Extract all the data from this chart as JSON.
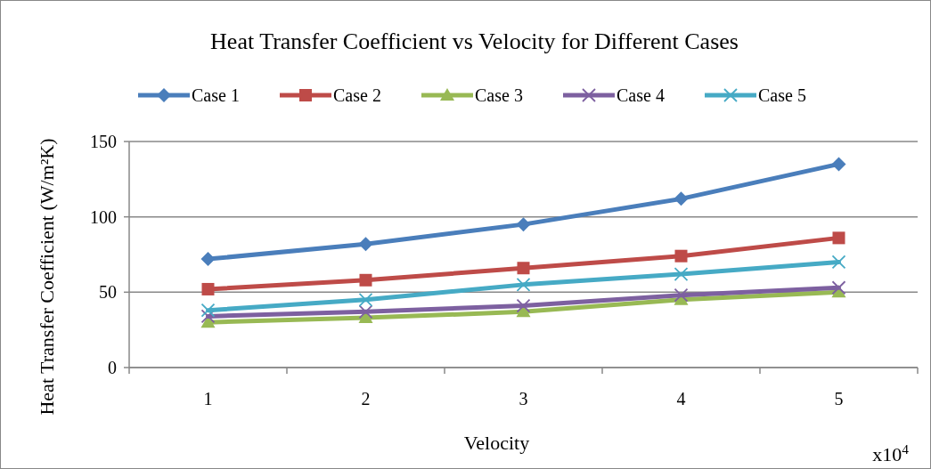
{
  "chart_data": {
    "type": "line",
    "title": "Heat Transfer Coefficient vs Velocity for Different Cases",
    "xlabel": "Velocity",
    "ylabel": "Heat Transfer Coefficient (W/m²K)",
    "annotations": [
      "x10$^{4}$"
    ],
    "categories": [
      "1",
      "2",
      "3",
      "4",
      "5"
    ],
    "series": [
      {
        "name": "Case 1",
        "color": "#4a7ebb",
        "marker": "diamond",
        "values": [
          72,
          82,
          95,
          112,
          135
        ]
      },
      {
        "name": "Case 2",
        "color": "#be4b48",
        "marker": "square",
        "values": [
          52,
          58,
          66,
          74,
          86
        ]
      },
      {
        "name": "Case 3",
        "color": "#98b954",
        "marker": "triangle",
        "values": [
          30,
          33,
          37,
          45,
          50
        ]
      },
      {
        "name": "Case 4",
        "color": "#7d60a0",
        "marker": "cross",
        "values": [
          34,
          37,
          41,
          48,
          53
        ]
      },
      {
        "name": "Case 5",
        "color": "#46aac5",
        "marker": "cross",
        "values": [
          38,
          45,
          55,
          62,
          70
        ]
      }
    ],
    "ylim": [
      0,
      150
    ],
    "yticks": [
      0,
      50,
      100,
      150
    ],
    "grid": "y",
    "legend": "top",
    "line_style": "solid"
  }
}
